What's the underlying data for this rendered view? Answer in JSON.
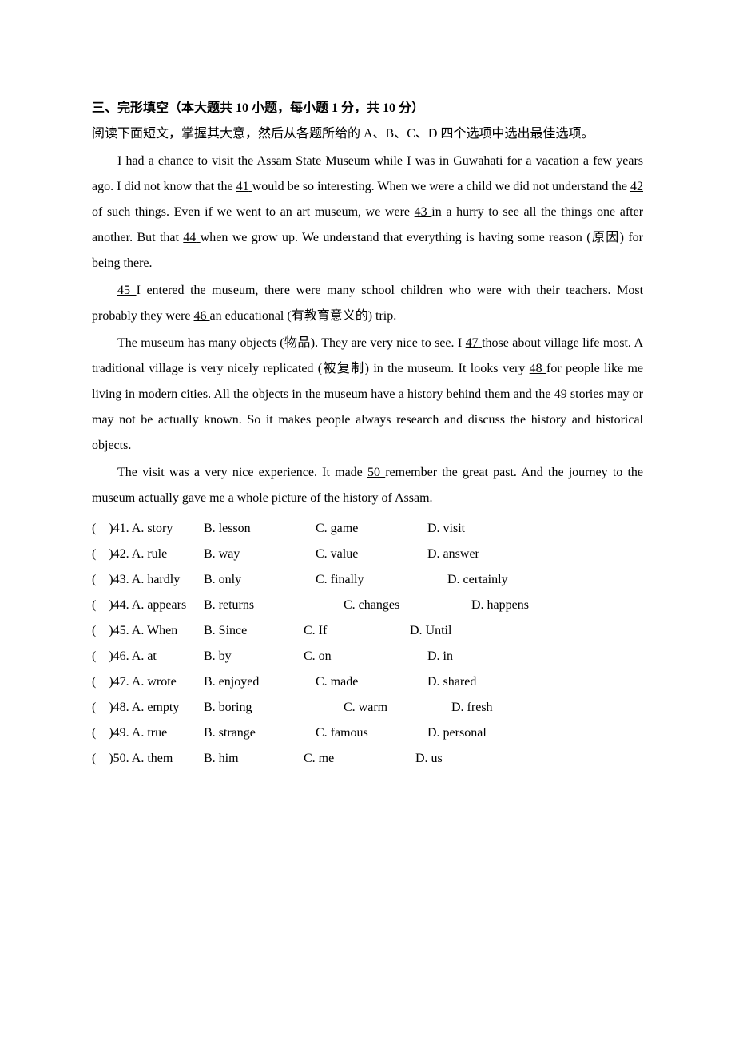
{
  "section_title": "三、完形填空（本大题共 10 小题，每小题 1 分，共 10 分）",
  "instruction": "阅读下面短文，掌握其大意，然后从各题所给的 A、B、C、D 四个选项中选出最佳选项。",
  "para1_part1": "I had a chance to visit the Assam State Museum while I was in Guwahati for a vacation a few years ago. I did not know that the ",
  "blank41_pre": "  ",
  "blank41": "41",
  "blank41_post": "  ",
  "para1_part2": " would be so interesting. When we were a child we did not understand the ",
  "blank42_pre": "  ",
  "blank42": "42",
  "blank42_post": "  ",
  "para1_part3": " of such things. Even if we went to an art museum, we were ",
  "blank43_pre": "  ",
  "blank43": "43",
  "blank43_post": "  ",
  "para1_part4": " in a hurry to see all the things one after another. But that ",
  "blank44_pre": "   ",
  "blank44": "44",
  "blank44_post": "  ",
  "para1_part5": " when we grow up. We understand that everything is having some reason (原因) for being there.",
  "para2_part1_pre": "  ",
  "blank45": "45",
  "para2_part1_post": "  ",
  "para2_part2": " I entered the museum, there were many school children who were with their teachers. Most probably they were ",
  "blank46_pre": "  ",
  "blank46": "46",
  "blank46_post": "  ",
  "para2_part3": " an educational (有教育意义的) trip.",
  "para3_part1": "The museum has many objects (物品). They are very nice to see. I ",
  "blank47_pre": "  ",
  "blank47": "47",
  "blank47_post": "  ",
  "para3_part2": " those about village life most. A traditional village is very nicely replicated (被复制) in the museum. It looks very ",
  "blank48_pre": "   ",
  "blank48": "48",
  "blank48_post": "  ",
  "para3_part3": " for people like me living in modern cities. All the objects in the museum have a history behind them and the ",
  "blank49_pre": "  ",
  "blank49": "49",
  "blank49_post": "  ",
  "para3_part4": " stories may or may not be actually known. So it makes people always research and discuss the history and historical objects.",
  "para4_part1": "The visit was a very nice experience. It made ",
  "blank50_pre": "  ",
  "blank50": "50",
  "blank50_post": "  ",
  "para4_part2": " remember the great past. And the journey to the museum actually gave me a whole picture of the history of Assam.",
  "options": [
    {
      "num": "41",
      "a": "A. story",
      "b": "B. lesson",
      "c": "C. game",
      "d": "D. visit",
      "c_offset": "0",
      "d_offset": "0"
    },
    {
      "num": "42",
      "a": "A. rule",
      "b": "B. way",
      "c": "C. value",
      "d": "D. answer",
      "c_offset": "0",
      "d_offset": "0"
    },
    {
      "num": "43",
      "a": "A. hardly",
      "b": "B. only",
      "c": "C. finally",
      "d": "D. certainly",
      "c_offset": "0",
      "d_offset": "25"
    },
    {
      "num": "44",
      "a": "A. appears",
      "b": "B. returns",
      "c": "C. changes",
      "d": "D. happens",
      "c_offset": "35",
      "d_offset": "55"
    },
    {
      "num": "45",
      "a": "A. When",
      "b": "B. Since",
      "c": "C. If",
      "d": "D. Until",
      "c_offset": "-15",
      "d_offset": "-7"
    },
    {
      "num": "46",
      "a": "A. at",
      "b": "B. by",
      "c": "C. on",
      "d": "D. in",
      "c_offset": "-15",
      "d_offset": "15"
    },
    {
      "num": "47",
      "a": "A. wrote",
      "b": "B. enjoyed",
      "c": "C. made",
      "d": "D. shared",
      "c_offset": "0",
      "d_offset": "0"
    },
    {
      "num": "48",
      "a": "A. empty",
      "b": "B. boring",
      "c": "C. warm",
      "d": "D. fresh",
      "c_offset": "35",
      "d_offset": "30"
    },
    {
      "num": "49",
      "a": "A. true",
      "b": "B. strange",
      "c": "C. famous",
      "d": "D. personal",
      "c_offset": "0",
      "d_offset": "0"
    },
    {
      "num": "50",
      "a": "A. them",
      "b": "B. him",
      "c": "C. me",
      "d": "D. us",
      "c_offset": "-15",
      "d_offset": "0"
    }
  ],
  "bracket_prefix": "(    )"
}
